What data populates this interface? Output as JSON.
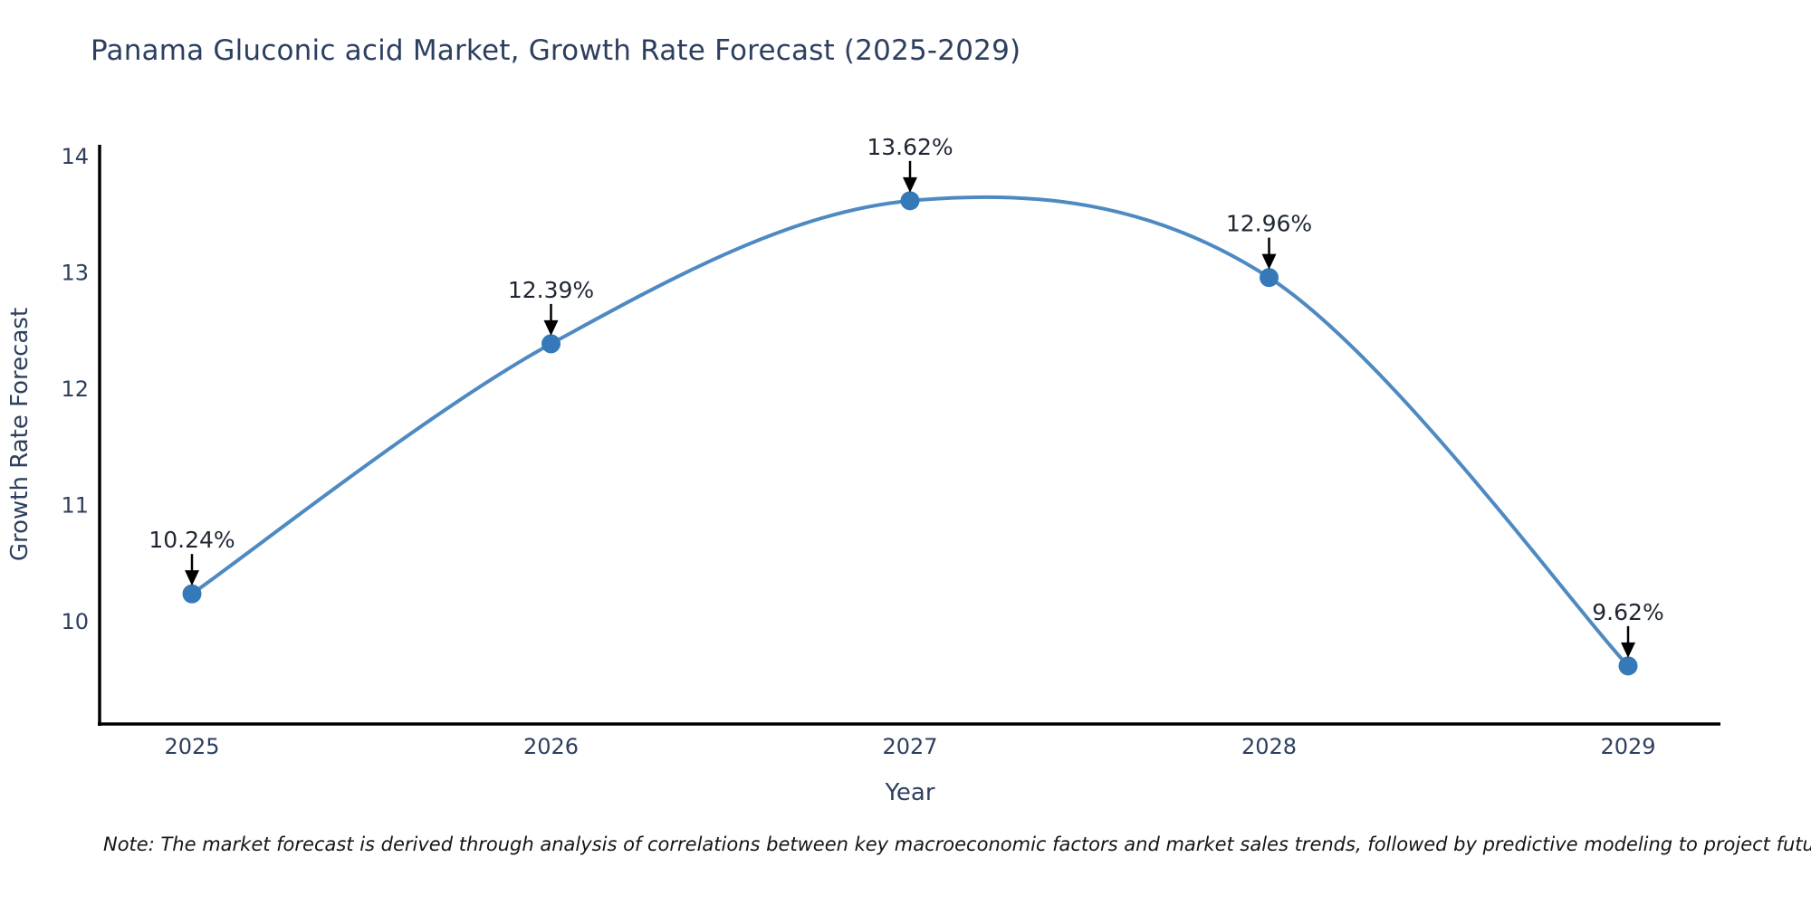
{
  "title": "Panama Gluconic acid Market, Growth Rate Forecast (2025-2029)",
  "note": "Note: The market forecast is derived through analysis of correlations between key macroeconomic factors and market sales trends, followed by predictive modeling to project future sales",
  "chart_data": {
    "type": "line",
    "title": "Panama Gluconic acid Market, Growth Rate Forecast (2025-2029)",
    "categories": [
      "2025",
      "2026",
      "2027",
      "2028",
      "2029"
    ],
    "values": [
      10.24,
      12.39,
      13.62,
      12.96,
      9.62
    ],
    "point_labels": [
      "10.24%",
      "12.39%",
      "13.62%",
      "12.96%",
      "9.62%"
    ],
    "xlabel": "Year",
    "ylabel": "Growth Rate Forecast",
    "yticks": [
      10,
      11,
      12,
      13,
      14
    ],
    "ylim": [
      9.12,
      14.1
    ],
    "line_shape": "spline",
    "grid": false,
    "legend": false,
    "colors": {
      "line": "#4e8ac1",
      "marker": "#3579b8",
      "axis": "#000000",
      "annotation_arrow": "#000000",
      "annotation_text": "#1f2633",
      "tick_text": "#2d3f5f",
      "title_text": "#2d3f5f"
    }
  }
}
